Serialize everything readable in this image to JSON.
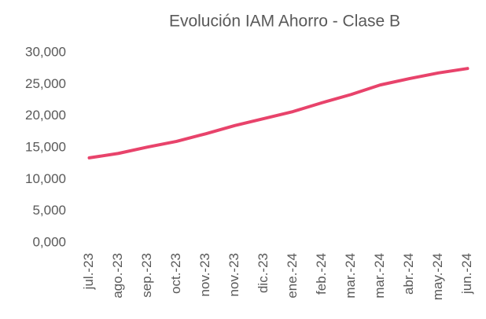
{
  "chart_data": {
    "type": "line",
    "title": "Evolución IAM Ahorro - Clase B",
    "categories": [
      "jul.-23",
      "ago.-23",
      "sep.-23",
      "oct.-23",
      "nov.-23",
      "nov.-23",
      "dic.-23",
      "ene.-24",
      "feb.-24",
      "mar.-24",
      "mar.-24",
      "abr.-24",
      "may.-24",
      "jun.-24"
    ],
    "series": [
      {
        "name": "IAM Ahorro - Clase B",
        "color": "#e8436b",
        "values": [
          13.4,
          14.1,
          15.1,
          16.0,
          17.2,
          18.5,
          19.6,
          20.7,
          22.1,
          23.4,
          24.9,
          25.9,
          26.8,
          27.5
        ]
      }
    ],
    "ylim": [
      0,
      30
    ],
    "yticks": [
      {
        "value": 0,
        "label": "0,000"
      },
      {
        "value": 5,
        "label": "5,000"
      },
      {
        "value": 10,
        "label": "10,000"
      },
      {
        "value": 15,
        "label": "15,000"
      },
      {
        "value": 20,
        "label": "20,000"
      },
      {
        "value": 25,
        "label": "25,000"
      },
      {
        "value": 30,
        "label": "30,000"
      }
    ],
    "grid": false
  }
}
